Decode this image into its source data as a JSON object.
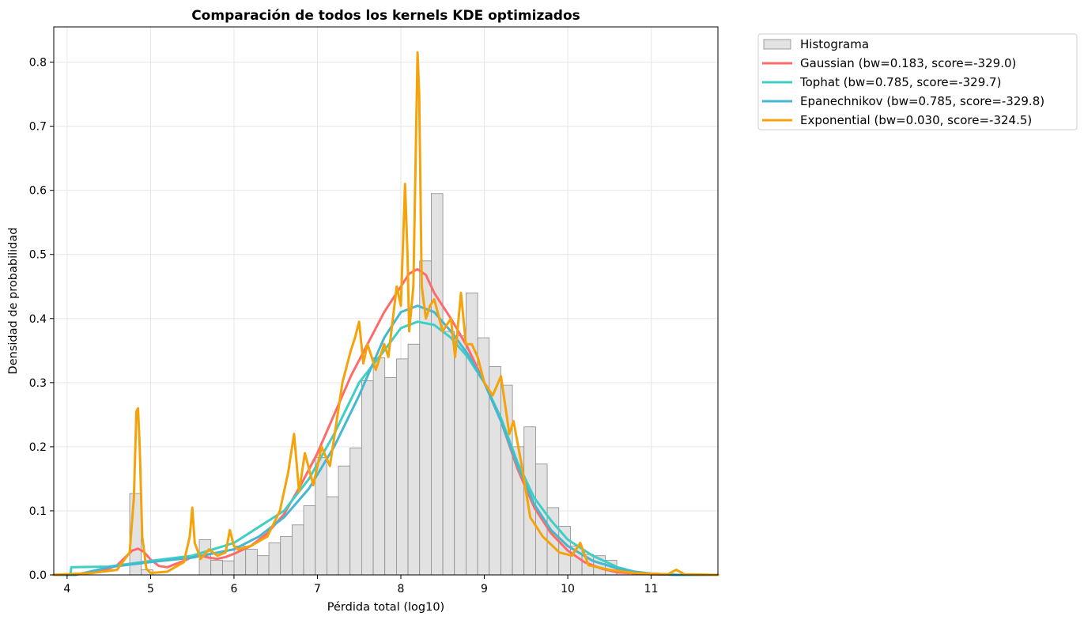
{
  "chart_data": {
    "type": "area",
    "title": "Comparación de todos los kernels KDE optimizados",
    "xlabel": "Pérdida total (log10)",
    "ylabel": "Densidad de probabilidad",
    "xlim": [
      3.84,
      11.8
    ],
    "ylim": [
      0,
      0.855
    ],
    "xticks": [
      4,
      5,
      6,
      7,
      8,
      9,
      10,
      11
    ],
    "yticks": [
      0.0,
      0.1,
      0.2,
      0.3,
      0.4,
      0.5,
      0.6,
      0.7,
      0.8
    ],
    "grid": true,
    "legend_position": "outside-top-right",
    "histogram": {
      "name": "Histograma",
      "color": "#e2e2e2",
      "edgecolor": "#8a8a8a",
      "bin_start": 4.75,
      "bin_width": 0.139,
      "values": [
        0.127,
        0.008,
        0,
        0,
        0,
        0,
        0.055,
        0.023,
        0.022,
        0.045,
        0.04,
        0.03,
        0.05,
        0.06,
        0.078,
        0.108,
        0.183,
        0.122,
        0.17,
        0.198,
        0.303,
        0.339,
        0.308,
        0.337,
        0.36,
        0.49,
        0.595,
        0.38,
        0.373,
        0.44,
        0.37,
        0.325,
        0.296,
        0.2,
        0.231,
        0.173,
        0.105,
        0.076,
        0.045,
        0.032,
        0.03,
        0.023,
        0.006
      ]
    },
    "series": [
      {
        "name": "Gaussian (bw=0.183, score=-329.0)",
        "color": "#ff6b6b",
        "x": [
          3.84,
          4.2,
          4.45,
          4.6,
          4.7,
          4.78,
          4.85,
          4.92,
          5.0,
          5.1,
          5.2,
          5.3,
          5.4,
          5.5,
          5.6,
          5.7,
          5.8,
          5.9,
          6.0,
          6.2,
          6.4,
          6.6,
          6.8,
          7.0,
          7.2,
          7.4,
          7.6,
          7.8,
          8.0,
          8.1,
          8.2,
          8.3,
          8.4,
          8.6,
          8.8,
          9.0,
          9.2,
          9.4,
          9.6,
          9.8,
          10.0,
          10.2,
          10.4,
          10.6,
          11.0,
          11.4,
          11.8
        ],
        "y": [
          0.0,
          0.002,
          0.007,
          0.015,
          0.028,
          0.038,
          0.041,
          0.036,
          0.024,
          0.014,
          0.012,
          0.017,
          0.022,
          0.028,
          0.03,
          0.027,
          0.025,
          0.028,
          0.033,
          0.045,
          0.065,
          0.095,
          0.14,
          0.19,
          0.25,
          0.31,
          0.36,
          0.41,
          0.45,
          0.47,
          0.477,
          0.468,
          0.44,
          0.4,
          0.355,
          0.3,
          0.24,
          0.165,
          0.105,
          0.065,
          0.038,
          0.02,
          0.01,
          0.004,
          0.001,
          0.0,
          0.0
        ]
      },
      {
        "name": "Tophat (bw=0.785, score=-329.7)",
        "color": "#40cfc4",
        "x": [
          3.84,
          4.04,
          4.05,
          4.5,
          5.0,
          5.5,
          6.0,
          6.3,
          6.6,
          6.9,
          7.2,
          7.5,
          7.8,
          8.0,
          8.2,
          8.4,
          8.6,
          8.8,
          9.0,
          9.2,
          9.4,
          9.6,
          9.8,
          10.0,
          10.3,
          10.6,
          10.8,
          11.0,
          11.3,
          11.8
        ],
        "y": [
          0.0,
          0.0,
          0.012,
          0.013,
          0.022,
          0.03,
          0.05,
          0.075,
          0.1,
          0.15,
          0.22,
          0.3,
          0.35,
          0.385,
          0.395,
          0.39,
          0.37,
          0.34,
          0.3,
          0.245,
          0.175,
          0.12,
          0.085,
          0.055,
          0.03,
          0.012,
          0.005,
          0.002,
          0.0,
          0.0
        ]
      },
      {
        "name": "Epanechnikov (bw=0.785, score=-329.8)",
        "color": "#45b7d1",
        "x": [
          3.84,
          4.1,
          4.5,
          5.0,
          5.5,
          6.0,
          6.3,
          6.6,
          6.9,
          7.2,
          7.5,
          7.8,
          8.0,
          8.2,
          8.4,
          8.6,
          8.8,
          9.0,
          9.2,
          9.4,
          9.6,
          9.8,
          10.0,
          10.3,
          10.6,
          10.8,
          11.0,
          11.3,
          11.8
        ],
        "y": [
          0.0,
          0.0,
          0.012,
          0.02,
          0.027,
          0.04,
          0.06,
          0.09,
          0.135,
          0.2,
          0.28,
          0.37,
          0.41,
          0.42,
          0.41,
          0.38,
          0.345,
          0.3,
          0.24,
          0.17,
          0.11,
          0.07,
          0.045,
          0.022,
          0.01,
          0.005,
          0.002,
          0.0,
          0.0
        ]
      },
      {
        "name": "Exponential (bw=0.030, score=-324.5)",
        "color": "#f4a30b",
        "x": [
          3.84,
          4.3,
          4.6,
          4.75,
          4.8,
          4.83,
          4.85,
          4.87,
          4.9,
          4.95,
          5.0,
          5.2,
          5.4,
          5.47,
          5.5,
          5.53,
          5.6,
          5.7,
          5.8,
          5.9,
          5.95,
          6.0,
          6.05,
          6.2,
          6.4,
          6.55,
          6.65,
          6.72,
          6.78,
          6.85,
          6.95,
          7.05,
          7.15,
          7.3,
          7.4,
          7.45,
          7.5,
          7.55,
          7.6,
          7.7,
          7.8,
          7.85,
          7.95,
          8.0,
          8.05,
          8.08,
          8.1,
          8.15,
          8.2,
          8.22,
          8.25,
          8.3,
          8.35,
          8.4,
          8.5,
          8.6,
          8.65,
          8.72,
          8.78,
          8.85,
          8.92,
          9.0,
          9.1,
          9.2,
          9.3,
          9.35,
          9.45,
          9.55,
          9.7,
          9.9,
          10.05,
          10.15,
          10.25,
          10.5,
          10.8,
          11.2,
          11.3,
          11.4,
          11.8
        ],
        "y": [
          0.0,
          0.003,
          0.008,
          0.035,
          0.12,
          0.255,
          0.26,
          0.2,
          0.06,
          0.01,
          0.003,
          0.005,
          0.02,
          0.06,
          0.105,
          0.05,
          0.025,
          0.04,
          0.03,
          0.035,
          0.07,
          0.045,
          0.04,
          0.045,
          0.06,
          0.1,
          0.16,
          0.22,
          0.13,
          0.19,
          0.14,
          0.2,
          0.17,
          0.3,
          0.35,
          0.37,
          0.395,
          0.33,
          0.36,
          0.32,
          0.36,
          0.34,
          0.45,
          0.42,
          0.61,
          0.5,
          0.38,
          0.45,
          0.815,
          0.75,
          0.45,
          0.4,
          0.42,
          0.43,
          0.38,
          0.4,
          0.34,
          0.44,
          0.36,
          0.36,
          0.34,
          0.3,
          0.28,
          0.31,
          0.22,
          0.24,
          0.17,
          0.09,
          0.06,
          0.035,
          0.03,
          0.05,
          0.015,
          0.008,
          0.003,
          0.001,
          0.008,
          0.001,
          0.0
        ]
      }
    ]
  }
}
